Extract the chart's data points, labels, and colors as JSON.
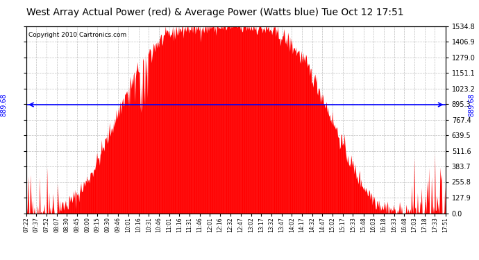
{
  "title": "West Array Actual Power (red) & Average Power (Watts blue) Tue Oct 12 17:51",
  "copyright": "Copyright 2010 Cartronics.com",
  "avg_power": 889.68,
  "y_max": 1534.8,
  "y_min": 0.0,
  "yticks": [
    0.0,
    127.9,
    255.8,
    383.7,
    511.6,
    639.5,
    767.4,
    895.3,
    1023.2,
    1151.1,
    1279.0,
    1406.9,
    1534.8
  ],
  "bar_color": "#FF0000",
  "avg_line_color": "#0000FF",
  "bg_color": "#FFFFFF",
  "grid_color": "#AAAAAA",
  "title_fontsize": 10,
  "copyright_fontsize": 6.5,
  "tick_labels": [
    "07:22",
    "07:37",
    "07:52",
    "08:07",
    "08:30",
    "08:45",
    "09:00",
    "09:15",
    "09:30",
    "09:46",
    "10:01",
    "10:16",
    "10:31",
    "10:46",
    "11:01",
    "11:16",
    "11:31",
    "11:46",
    "12:01",
    "12:16",
    "12:32",
    "12:47",
    "13:02",
    "13:17",
    "13:32",
    "13:47",
    "14:02",
    "14:17",
    "14:32",
    "14:47",
    "15:02",
    "15:17",
    "15:33",
    "15:48",
    "16:03",
    "16:18",
    "16:33",
    "16:48",
    "17:03",
    "17:18",
    "17:33",
    "17:51"
  ]
}
